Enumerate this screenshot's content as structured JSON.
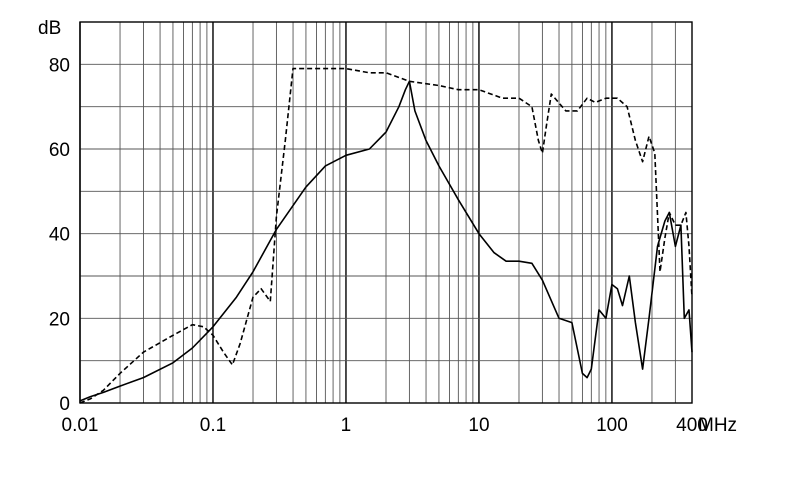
{
  "chart_data": {
    "type": "line",
    "xscale": "log",
    "xlim": [
      0.01,
      400
    ],
    "ylim": [
      0,
      90
    ],
    "grid": true,
    "x_unit": "MHz",
    "y_unit": "dB",
    "x_ticks": [
      {
        "value": 0.01,
        "label": "0.01"
      },
      {
        "value": 0.1,
        "label": "0.1"
      },
      {
        "value": 1,
        "label": "1"
      },
      {
        "value": 10,
        "label": "10"
      },
      {
        "value": 100,
        "label": "100"
      },
      {
        "value": 400,
        "label": "400"
      }
    ],
    "y_ticks": [
      {
        "value": 0,
        "label": "0"
      },
      {
        "value": 20,
        "label": "20"
      },
      {
        "value": 40,
        "label": "40"
      },
      {
        "value": 60,
        "label": "60"
      },
      {
        "value": 80,
        "label": "80"
      }
    ],
    "series": [
      {
        "style": "solid",
        "x": [
          0.01,
          0.012,
          0.015,
          0.02,
          0.03,
          0.05,
          0.07,
          0.1,
          0.15,
          0.2,
          0.3,
          0.5,
          0.7,
          1,
          1.5,
          2,
          2.5,
          2.8,
          3,
          3.3,
          4,
          5,
          7,
          10,
          13,
          16,
          20,
          25,
          30,
          40,
          50,
          60,
          65,
          70,
          80,
          90,
          100,
          110,
          120,
          135,
          150,
          170,
          190,
          220,
          250,
          270,
          300,
          330,
          350,
          380,
          400
        ],
        "y": [
          0.5,
          1.5,
          2.5,
          4,
          6,
          9.5,
          13,
          18,
          25,
          31,
          41,
          51,
          56,
          58.5,
          60,
          64,
          70,
          74,
          76,
          69,
          62,
          56,
          48,
          40,
          35.5,
          33.5,
          33.5,
          33,
          29,
          20,
          19,
          7,
          6,
          8,
          22,
          20,
          28,
          27,
          23,
          30,
          19,
          8,
          20,
          37,
          43,
          45,
          37,
          42,
          20,
          22,
          12
        ]
      },
      {
        "style": "dashed",
        "x": [
          0.01,
          0.012,
          0.015,
          0.02,
          0.03,
          0.05,
          0.07,
          0.085,
          0.1,
          0.12,
          0.14,
          0.16,
          0.2,
          0.23,
          0.27,
          0.3,
          0.35,
          0.4,
          0.45,
          0.5,
          0.7,
          1,
          1.5,
          2,
          3,
          5,
          7,
          10,
          15,
          20,
          25,
          28,
          30,
          32,
          35,
          45,
          55,
          65,
          75,
          90,
          110,
          130,
          150,
          170,
          190,
          210,
          230,
          250,
          270,
          300,
          330,
          360,
          380,
          400
        ],
        "y": [
          0,
          1,
          3,
          7,
          12,
          16,
          18.5,
          18,
          16,
          12,
          9,
          14,
          25,
          27,
          24,
          44,
          62,
          79,
          79,
          79,
          79,
          79,
          78,
          78,
          76,
          75,
          74,
          74,
          72,
          72,
          70,
          62,
          59,
          65,
          73,
          69,
          69,
          72,
          71,
          72,
          72,
          70,
          62,
          57,
          63,
          59,
          31,
          39,
          45,
          42,
          42,
          45,
          37,
          25
        ]
      }
    ]
  }
}
